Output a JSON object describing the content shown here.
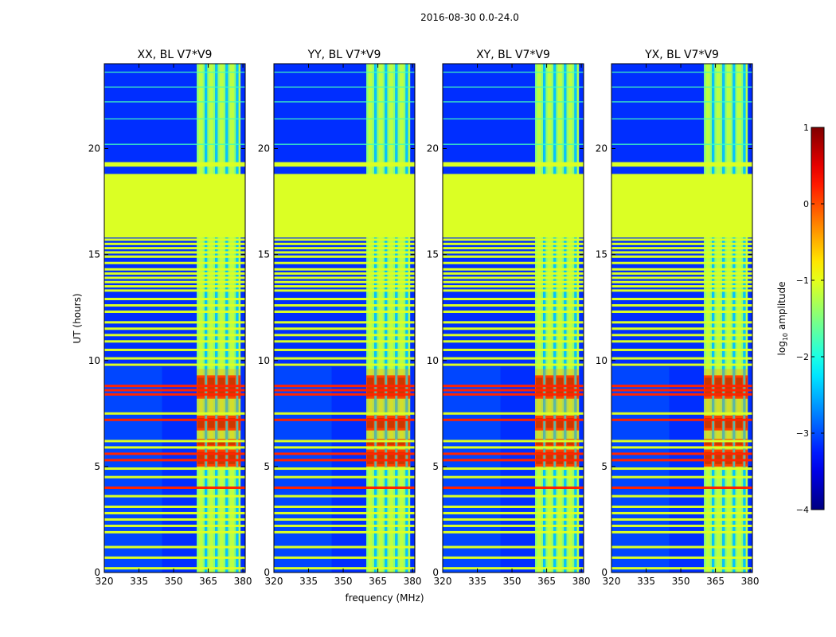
{
  "figure": {
    "suptitle": "2016-08-30 0.0-24.0",
    "xlabel": "frequency (MHz)",
    "ylabel": "UT (hours)"
  },
  "chart_data": {
    "type": "heatmap",
    "x": {
      "min": 320,
      "max": 381,
      "ticks": [
        320,
        335,
        350,
        365,
        380
      ]
    },
    "y": {
      "min": 0,
      "max": 24,
      "ticks": [
        0,
        5,
        10,
        15,
        20
      ]
    },
    "panels": [
      {
        "title": "XX, BL V7*V9"
      },
      {
        "title": "YY, BL V7*V9"
      },
      {
        "title": "XY, BL V7*V9"
      },
      {
        "title": "YX, BL V7*V9"
      }
    ],
    "rfi_band_mhz": [
      360,
      379
    ],
    "rfi_subbands_mhz": [
      [
        360,
        363.5
      ],
      [
        364.5,
        368
      ],
      [
        369,
        372.5
      ],
      [
        373.5,
        377
      ],
      [
        378,
        379
      ]
    ],
    "flagged_block_hours": [
      15.8,
      18.8
    ],
    "flagged_lines_hours": [
      19.2,
      19.3,
      15.7,
      15.5,
      15.3,
      15.1,
      14.9,
      14.6,
      14.3,
      14.1,
      13.9,
      13.7,
      13.5,
      13.3,
      12.9,
      12.6,
      12.3,
      11.8,
      11.5,
      11.2,
      10.9,
      10.5,
      10.1,
      9.8,
      7.5,
      6.2,
      5.9,
      4.9,
      4.5,
      3.6,
      3.1,
      2.8,
      2.5,
      2.2,
      1.9,
      1.2,
      0.7,
      0.2
    ],
    "strong_rows_hours": [
      8.8,
      8.6,
      8.4,
      7.2,
      5.6,
      5.3,
      4.0
    ],
    "colorbar": {
      "label_prefix": "log",
      "label_sub": "10",
      "label_suffix": " amplitude",
      "min": -4,
      "max": 1,
      "ticks": [
        1,
        0,
        -1,
        -2,
        -3,
        -4
      ]
    }
  }
}
